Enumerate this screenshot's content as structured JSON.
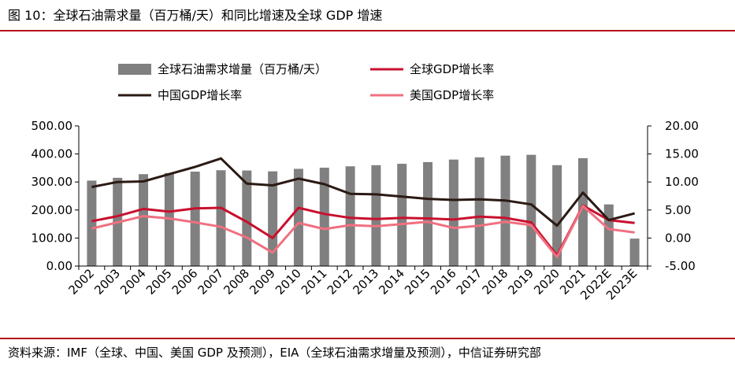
{
  "figure": {
    "title": "图 10：全球石油需求量（百万桶/天）和同比增速及全球 GDP 增速",
    "source": "资料来源：IMF（全球、中国、美国 GDP 及预测），EIA（全球石油需求增量及预测），中信证券研究部"
  },
  "chart_data": {
    "type": "bar",
    "categories": [
      "2002",
      "2003",
      "2004",
      "2005",
      "2006",
      "2007",
      "2008",
      "2009",
      "2010",
      "2011",
      "2012",
      "2013",
      "2014",
      "2015",
      "2016",
      "2017",
      "2018",
      "2019",
      "2020",
      "2021",
      "2022E",
      "2023E"
    ],
    "y_left": {
      "ylim": [
        0,
        500
      ],
      "ticks": [
        "500.00",
        "400.00",
        "300.00",
        "200.00",
        "100.00",
        "0.00"
      ]
    },
    "y_right": {
      "ylim": [
        -5,
        20
      ],
      "ticks": [
        "20.00",
        "15.00",
        "10.00",
        "5.00",
        "0.00",
        "-5.00"
      ]
    },
    "series": [
      {
        "name": "全球石油需求增量（百万桶/天）",
        "type": "bar",
        "axis": "left",
        "color": "#808080",
        "values": [
          305,
          315,
          328,
          332,
          337,
          342,
          341,
          338,
          347,
          351,
          356,
          360,
          365,
          371,
          380,
          388,
          394,
          397,
          360,
          385,
          220,
          98
        ]
      },
      {
        "name": "全球GDP增长率",
        "type": "line",
        "axis": "right",
        "color": "#c8102e",
        "values": [
          3.0,
          3.9,
          5.2,
          4.7,
          5.3,
          5.4,
          2.9,
          0.0,
          5.4,
          4.3,
          3.6,
          3.4,
          3.6,
          3.5,
          3.3,
          3.8,
          3.6,
          2.8,
          -3.1,
          5.8,
          3.2,
          2.7
        ]
      },
      {
        "name": "中国GDP增长率",
        "type": "line",
        "axis": "right",
        "color": "#2b1a14",
        "values": [
          9.1,
          10.0,
          10.1,
          11.4,
          12.7,
          14.2,
          9.7,
          9.4,
          10.6,
          9.6,
          7.9,
          7.8,
          7.4,
          7.0,
          6.8,
          6.9,
          6.7,
          6.0,
          2.2,
          8.1,
          3.2,
          4.4
        ]
      },
      {
        "name": "美国GDP增长率",
        "type": "line",
        "axis": "right",
        "color": "#f07080",
        "values": [
          1.7,
          2.8,
          3.9,
          3.5,
          2.8,
          2.0,
          0.1,
          -2.6,
          2.7,
          1.6,
          2.3,
          2.1,
          2.5,
          2.9,
          1.8,
          2.2,
          2.9,
          2.3,
          -3.4,
          5.7,
          1.6,
          1.0
        ]
      }
    ],
    "legend": {
      "placement": "top",
      "columns": 2
    },
    "grid": false
  }
}
